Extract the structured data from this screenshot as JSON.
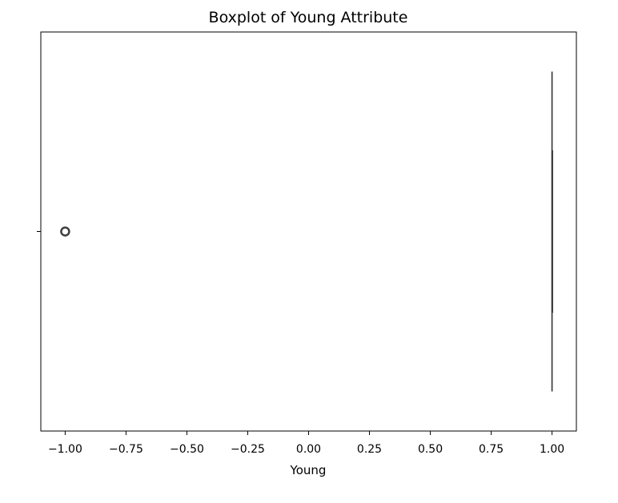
{
  "chart_data": {
    "type": "box",
    "title": "Boxplot of Young Attribute",
    "xlabel": "Young",
    "ylabel": "",
    "orientation": "horizontal",
    "xlim": [
      -1.1,
      1.1
    ],
    "x_ticks": [
      -1.0,
      -0.75,
      -0.5,
      -0.25,
      0.0,
      0.25,
      0.5,
      0.75,
      1.0
    ],
    "x_tick_labels": [
      "−1.00",
      "−0.75",
      "−0.50",
      "−0.25",
      "0.00",
      "0.25",
      "0.50",
      "0.75",
      "1.00"
    ],
    "boxes": [
      {
        "whisker_low": 1.0,
        "q1": 1.0,
        "median": 1.0,
        "q3": 1.0,
        "whisker_high": 1.0,
        "outliers": [
          -1.0
        ]
      }
    ],
    "grid": false,
    "colors": {
      "box_line": "#3f3f3f",
      "outlier": "#3f3f3f",
      "axes": "#000000"
    }
  }
}
